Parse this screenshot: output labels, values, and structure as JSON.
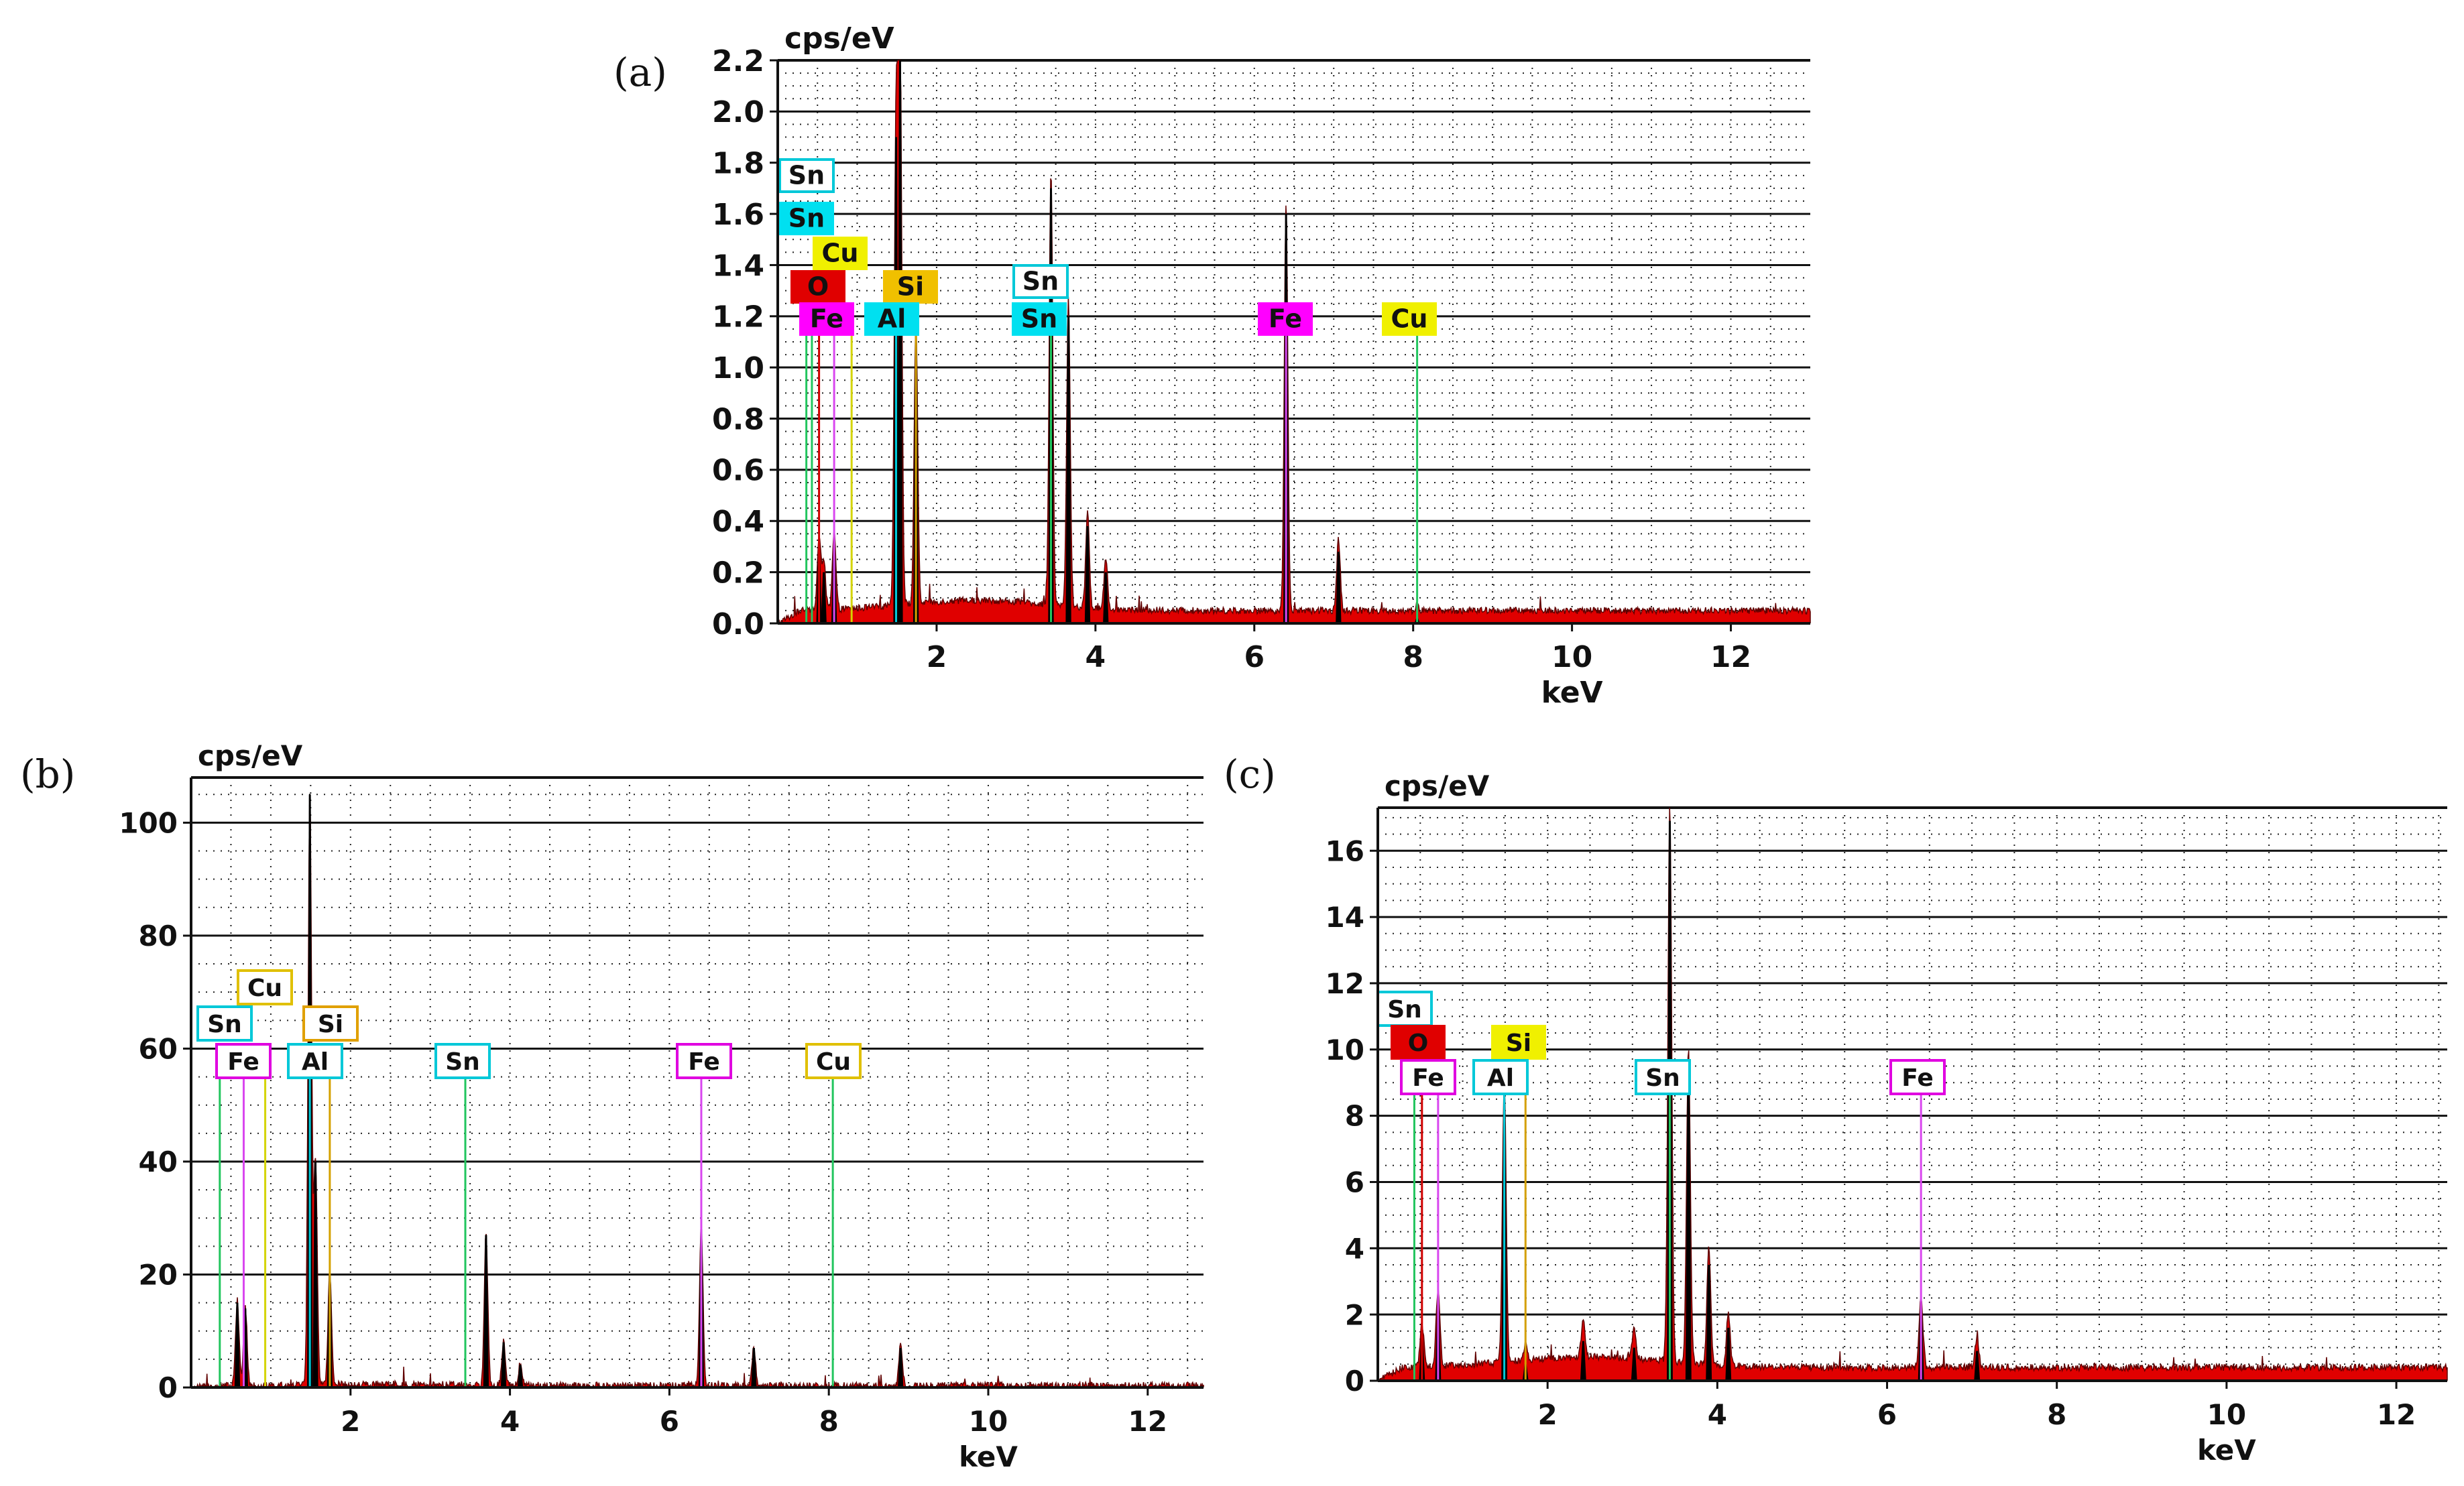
{
  "chart_data": [
    {
      "panel": "(a)",
      "type": "line",
      "title": "",
      "ylabel": "cps/eV",
      "xlabel": "keV",
      "xlim": [
        0,
        13
      ],
      "ylim": [
        0,
        2.2
      ],
      "xticks": [
        2,
        4,
        6,
        8,
        10,
        12
      ],
      "xtick_labels": [
        "2",
        "4",
        "6",
        "8",
        "10",
        "12"
      ],
      "yticks": [
        0,
        0.2,
        0.4,
        0.6,
        0.8,
        1.0,
        1.2,
        1.4,
        1.6,
        1.8,
        2.0,
        2.2
      ],
      "ytick_labels": [
        "0.0",
        "0.2",
        "0.4",
        "0.6",
        "0.8",
        "1.0",
        "1.2",
        "1.4",
        "1.6",
        "1.8",
        "2.0",
        "2.2"
      ],
      "grid": true,
      "background": 0.05,
      "peaks": [
        {
          "x": 0.52,
          "y": 0.28
        },
        {
          "x": 0.58,
          "y": 0.2
        },
        {
          "x": 0.71,
          "y": 0.3
        },
        {
          "x": 1.49,
          "y": 1.9
        },
        {
          "x": 1.54,
          "y": 2.2
        },
        {
          "x": 1.74,
          "y": 1.1
        },
        {
          "x": 3.44,
          "y": 1.7
        },
        {
          "x": 3.66,
          "y": 1.2
        },
        {
          "x": 3.9,
          "y": 0.38
        },
        {
          "x": 4.13,
          "y": 0.2
        },
        {
          "x": 6.4,
          "y": 1.6
        },
        {
          "x": 7.06,
          "y": 0.28
        },
        {
          "x": 8.05,
          "y": 0.02
        }
      ],
      "markers": [
        {
          "symbol": "Sn",
          "x": 0.36,
          "color": "#22c55e"
        },
        {
          "symbol": "Sn",
          "x": 0.43,
          "color": "#22c55e"
        },
        {
          "symbol": "O",
          "x": 0.52,
          "color": "#d00000"
        },
        {
          "symbol": "Fe",
          "x": 0.71,
          "color": "#d946ef"
        },
        {
          "symbol": "Cu",
          "x": 0.93,
          "color": "#d4d400"
        },
        {
          "symbol": "Al",
          "x": 1.49,
          "color": "#00c8d8"
        },
        {
          "symbol": "Si",
          "x": 1.74,
          "color": "#d4a000"
        },
        {
          "symbol": "Sn",
          "x": 3.44,
          "color": "#22c55e"
        },
        {
          "symbol": "Fe",
          "x": 6.4,
          "color": "#d946ef"
        },
        {
          "symbol": "Cu",
          "x": 8.05,
          "color": "#22c55e"
        }
      ],
      "labels": [
        {
          "text": "Sn",
          "style": "outline",
          "color": "#00c8d8"
        },
        {
          "text": "Sn",
          "style": "filled",
          "color": "#00e0f0"
        },
        {
          "text": "Cu",
          "style": "filled",
          "color": "#f0f000"
        },
        {
          "text": "O",
          "style": "filled",
          "color": "#e00000"
        },
        {
          "text": "Si",
          "style": "filled",
          "color": "#f0c000"
        },
        {
          "text": "Fe",
          "style": "filled",
          "color": "#ff00ff"
        },
        {
          "text": "Al",
          "style": "filled",
          "color": "#00e0f0"
        },
        {
          "text": "Sn",
          "style": "outline",
          "color": "#00c8d8"
        },
        {
          "text": "Sn",
          "style": "filled",
          "color": "#00e0f0"
        },
        {
          "text": "Fe",
          "style": "filled",
          "color": "#ff00ff"
        },
        {
          "text": "Cu",
          "style": "filled",
          "color": "#f0f000"
        }
      ]
    },
    {
      "panel": "(b)",
      "type": "line",
      "title": "",
      "ylabel": "cps/eV",
      "xlabel": "keV",
      "xlim": [
        0,
        12.7
      ],
      "ylim": [
        0,
        108
      ],
      "xticks": [
        2,
        4,
        6,
        8,
        10,
        12
      ],
      "xtick_labels": [
        "2",
        "4",
        "6",
        "8",
        "10",
        "12"
      ],
      "yticks": [
        0,
        20,
        40,
        60,
        80,
        100
      ],
      "ytick_labels": [
        "0",
        "20",
        "40",
        "60",
        "80",
        "100"
      ],
      "grid": true,
      "background": 0.3,
      "peaks": [
        {
          "x": 0.58,
          "y": 15
        },
        {
          "x": 0.68,
          "y": 14
        },
        {
          "x": 1.49,
          "y": 105
        },
        {
          "x": 1.56,
          "y": 40
        },
        {
          "x": 1.74,
          "y": 20
        },
        {
          "x": 3.7,
          "y": 27
        },
        {
          "x": 3.92,
          "y": 8
        },
        {
          "x": 4.13,
          "y": 4
        },
        {
          "x": 6.4,
          "y": 28
        },
        {
          "x": 7.06,
          "y": 7
        },
        {
          "x": 8.9,
          "y": 7
        }
      ],
      "markers": [
        {
          "symbol": "Sn",
          "x": 0.36,
          "color": "#22c55e"
        },
        {
          "symbol": "Fe",
          "x": 0.66,
          "color": "#d946ef"
        },
        {
          "symbol": "Cu",
          "x": 0.93,
          "color": "#d4d400"
        },
        {
          "symbol": "Al",
          "x": 1.49,
          "color": "#00c8d8"
        },
        {
          "symbol": "Si",
          "x": 1.74,
          "color": "#d4a000"
        },
        {
          "symbol": "Sn",
          "x": 3.44,
          "color": "#22c55e"
        },
        {
          "symbol": "Fe",
          "x": 6.4,
          "color": "#d946ef"
        },
        {
          "symbol": "Cu",
          "x": 8.05,
          "color": "#22c55e"
        }
      ],
      "labels": [
        {
          "text": "Cu",
          "style": "outline",
          "color": "#e0c000"
        },
        {
          "text": "Sn",
          "style": "outline",
          "color": "#00c8d8"
        },
        {
          "text": "Si",
          "style": "outline",
          "color": "#e0a000"
        },
        {
          "text": "Fe",
          "style": "outline",
          "color": "#e000e0"
        },
        {
          "text": "Al",
          "style": "outline",
          "color": "#00c8d8"
        },
        {
          "text": "Sn",
          "style": "outline",
          "color": "#00c8d8"
        },
        {
          "text": "Fe",
          "style": "outline",
          "color": "#e000e0"
        },
        {
          "text": "Cu",
          "style": "outline",
          "color": "#e0c000"
        }
      ]
    },
    {
      "panel": "(c)",
      "type": "line",
      "title": "",
      "ylabel": "cps/eV",
      "xlabel": "keV",
      "xlim": [
        0,
        12.6
      ],
      "ylim": [
        0,
        17.3
      ],
      "xticks": [
        2,
        4,
        6,
        8,
        10,
        12
      ],
      "xtick_labels": [
        "2",
        "4",
        "6",
        "8",
        "10",
        "12"
      ],
      "yticks": [
        0,
        2,
        4,
        6,
        8,
        10,
        12,
        14,
        16
      ],
      "ytick_labels": [
        "0",
        "2",
        "4",
        "6",
        "8",
        "10",
        "12",
        "14",
        "16"
      ],
      "grid": true,
      "background": 0.4,
      "peaks": [
        {
          "x": 0.52,
          "y": 1.3
        },
        {
          "x": 0.71,
          "y": 2.3
        },
        {
          "x": 1.49,
          "y": 8.5
        },
        {
          "x": 1.74,
          "y": 0.5
        },
        {
          "x": 2.42,
          "y": 1.2
        },
        {
          "x": 3.02,
          "y": 1.0
        },
        {
          "x": 3.44,
          "y": 16.9
        },
        {
          "x": 3.66,
          "y": 9.5
        },
        {
          "x": 3.9,
          "y": 3.5
        },
        {
          "x": 4.13,
          "y": 1.6
        },
        {
          "x": 6.4,
          "y": 2.2
        },
        {
          "x": 7.06,
          "y": 0.9
        }
      ],
      "markers": [
        {
          "symbol": "Sn",
          "x": 0.43,
          "color": "#22c55e"
        },
        {
          "symbol": "O",
          "x": 0.52,
          "color": "#d00000"
        },
        {
          "symbol": "Fe",
          "x": 0.71,
          "color": "#d946ef"
        },
        {
          "symbol": "Al",
          "x": 1.49,
          "color": "#00c8d8"
        },
        {
          "symbol": "Si",
          "x": 1.74,
          "color": "#d4a000"
        },
        {
          "symbol": "Sn",
          "x": 3.44,
          "color": "#22c55e"
        },
        {
          "symbol": "Fe",
          "x": 6.4,
          "color": "#d946ef"
        }
      ],
      "labels": [
        {
          "text": "Sn",
          "style": "outline",
          "color": "#00c8d8"
        },
        {
          "text": "O",
          "style": "filled",
          "color": "#e00000"
        },
        {
          "text": "Si",
          "style": "filled",
          "color": "#f0f000"
        },
        {
          "text": "Fe",
          "style": "outline",
          "color": "#e000e0"
        },
        {
          "text": "Al",
          "style": "outline",
          "color": "#00c8d8"
        },
        {
          "text": "Sn",
          "style": "outline",
          "color": "#00c8d8"
        },
        {
          "text": "Fe",
          "style": "outline",
          "color": "#e000e0"
        }
      ]
    }
  ]
}
